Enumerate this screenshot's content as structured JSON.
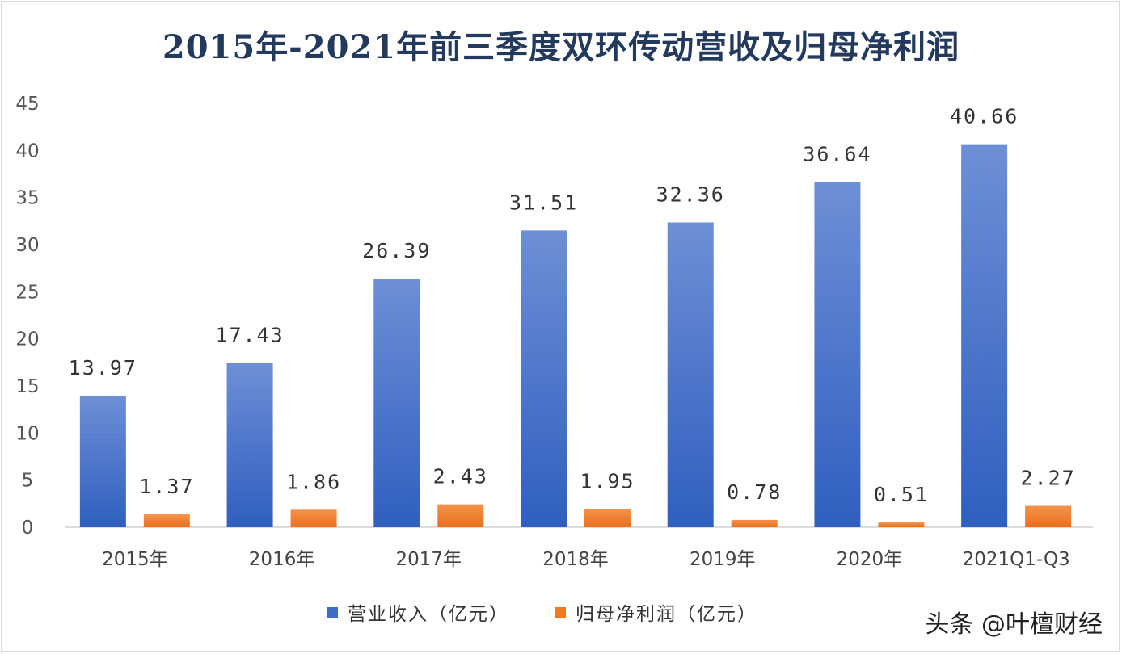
{
  "chart_data": {
    "type": "bar",
    "title": "2015年-2021年前三季度双环传动营收及归母净利润",
    "categories": [
      "2015年",
      "2016年",
      "2017年",
      "2018年",
      "2019年",
      "2020年",
      "2021Q1-Q3"
    ],
    "series": [
      {
        "name": "营业收入（亿元）",
        "values": [
          13.97,
          17.43,
          26.39,
          31.51,
          32.36,
          36.64,
          40.66
        ],
        "labels": [
          "13.97",
          "17.43",
          "26.39",
          "31.51",
          "32.36",
          "36.64",
          "40.66"
        ],
        "color": "#3e6fc6"
      },
      {
        "name": "归母净利润（亿元）",
        "values": [
          1.37,
          1.86,
          2.43,
          1.95,
          0.78,
          0.51,
          2.27
        ],
        "labels": [
          "1.37",
          "1.86",
          "2.43",
          "1.95",
          "0.78",
          "0.51",
          "2.27"
        ],
        "color": "#f07b1f"
      }
    ],
    "ylim": [
      0,
      45
    ],
    "yticks": [
      "0",
      "5",
      "10",
      "15",
      "20",
      "25",
      "30",
      "35",
      "40",
      "45"
    ],
    "grid": false,
    "legend_position": "bottom"
  },
  "watermark": "头条 @叶檀财经"
}
